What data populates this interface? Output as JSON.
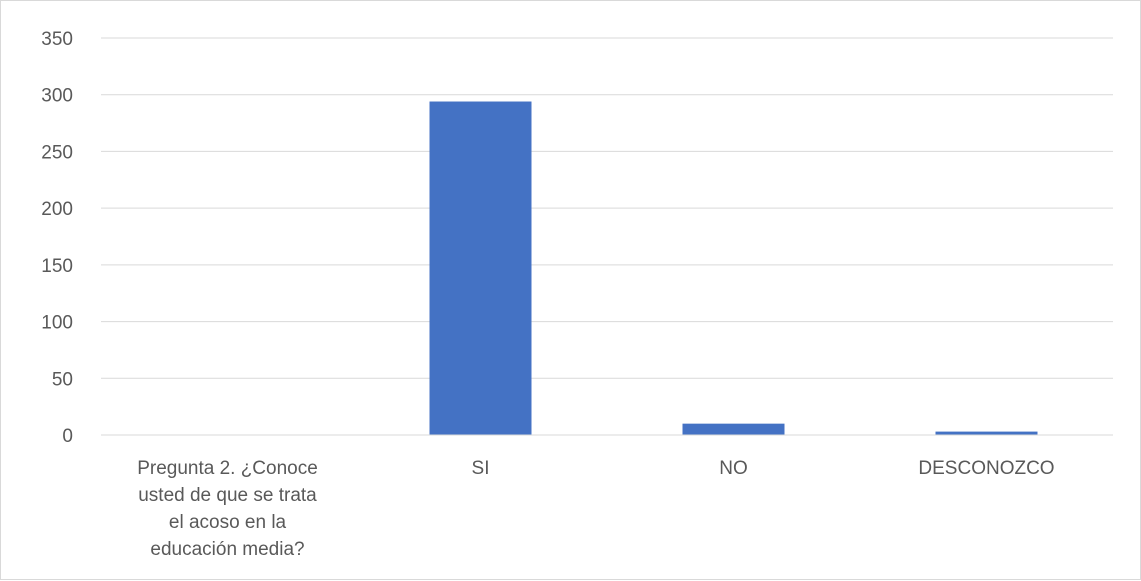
{
  "chart_data": {
    "type": "bar",
    "categories": [
      "Pregunta 2. ¿Conoce usted de que se trata el acoso en la educación media?",
      "SI",
      "NO",
      "DESCONOZCO"
    ],
    "category_lines": [
      [
        "Pregunta 2. ¿Conoce",
        "usted de que se trata",
        "el acoso en la",
        "educación media?"
      ],
      [
        "SI"
      ],
      [
        "NO"
      ],
      [
        "DESCONOZCO"
      ]
    ],
    "values": [
      0,
      294,
      10,
      3
    ],
    "ylim": [
      0,
      350
    ],
    "yticks": [
      0,
      50,
      100,
      150,
      200,
      250,
      300,
      350
    ],
    "grid": true,
    "legend": "none",
    "bar_color": "#4472c4",
    "grid_color": "#d9d9d9",
    "axis_color": "#d9d9d9",
    "text_color": "#595959"
  }
}
